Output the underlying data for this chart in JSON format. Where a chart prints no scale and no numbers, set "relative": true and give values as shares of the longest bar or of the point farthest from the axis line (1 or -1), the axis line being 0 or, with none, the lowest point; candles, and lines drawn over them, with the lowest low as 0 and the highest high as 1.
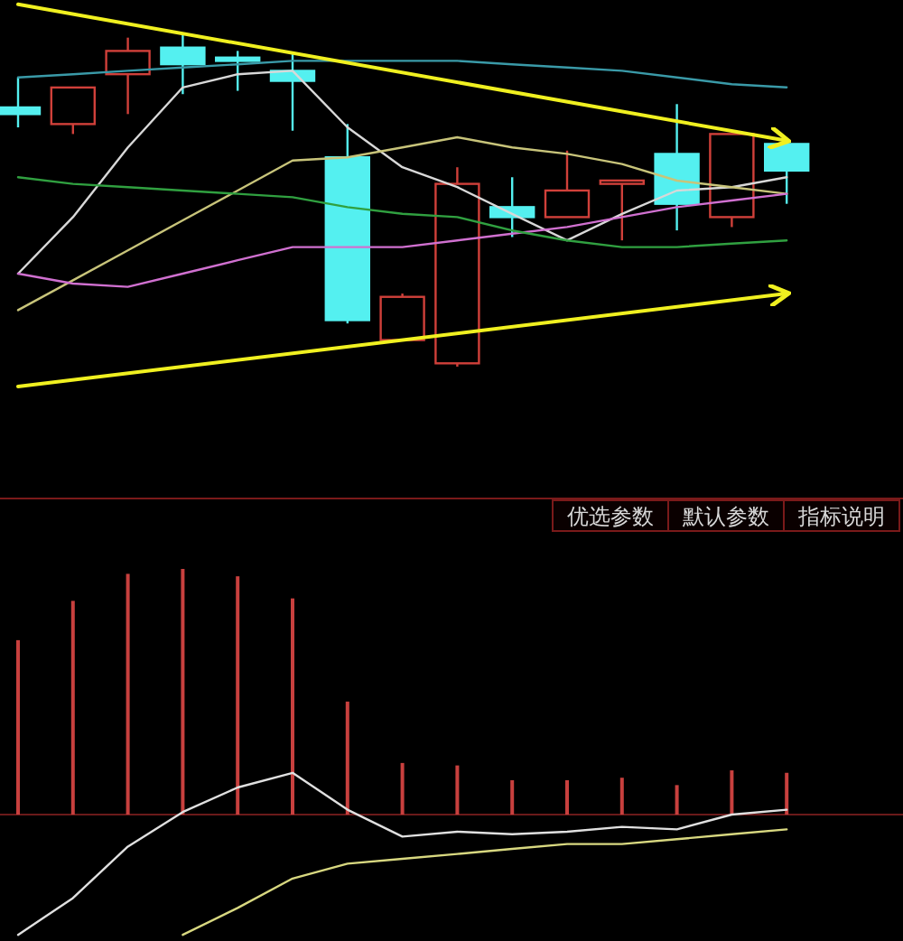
{
  "chart_data": [
    {
      "type": "candlestick",
      "relative": true,
      "categories": [
        null,
        null,
        null,
        null,
        null,
        null,
        null,
        null,
        null,
        null,
        null,
        null,
        null,
        null,
        null
      ],
      "ohlc": [
        [
          0.78,
          0.87,
          0.72,
          0.76
        ],
        [
          0.73,
          0.84,
          0.7,
          0.84
        ],
        [
          0.88,
          0.99,
          0.76,
          0.95
        ],
        [
          0.96,
          1.0,
          0.82,
          0.91
        ],
        [
          0.93,
          0.95,
          0.83,
          0.92
        ],
        [
          0.89,
          0.94,
          0.71,
          0.86
        ],
        [
          0.63,
          0.73,
          0.13,
          0.14
        ],
        [
          0.08,
          0.22,
          0.08,
          0.21
        ],
        [
          0.01,
          0.6,
          0.0,
          0.55
        ],
        [
          0.48,
          0.57,
          0.39,
          0.45
        ],
        [
          0.45,
          0.65,
          0.45,
          0.53
        ],
        [
          0.55,
          0.56,
          0.38,
          0.56
        ],
        [
          0.64,
          0.79,
          0.41,
          0.49
        ],
        [
          0.45,
          0.7,
          0.42,
          0.7
        ],
        [
          0.67,
          0.68,
          0.49,
          0.59
        ]
      ],
      "colors": [
        "#54f0f0",
        "#d0403a",
        "#d0403a",
        "#54f0f0",
        "#54f0f0",
        "#54f0f0",
        "#54f0f0",
        "#d0403a",
        "#d0403a",
        "#54f0f0",
        "#d0403a",
        "#d0403a",
        "#54f0f0",
        "#d0403a",
        "#54f0f0"
      ],
      "series": [
        {
          "type": "line",
          "color": "#d8d8d8",
          "values": [
            0.28,
            0.45,
            0.66,
            0.84,
            0.88,
            0.89,
            0.72,
            0.6,
            0.54,
            0.46,
            0.38,
            0.46,
            0.53,
            0.54,
            0.57
          ]
        },
        {
          "type": "line",
          "color": "#c8c47a",
          "values": [
            0.17,
            0.26,
            0.35,
            0.44,
            0.53,
            0.62,
            0.63,
            0.66,
            0.69,
            0.66,
            0.64,
            0.61,
            0.56,
            0.54,
            0.52
          ]
        },
        {
          "type": "line",
          "color": "#d070d0",
          "values": [
            0.28,
            0.25,
            0.24,
            0.28,
            0.32,
            0.36,
            0.36,
            0.36,
            0.38,
            0.4,
            0.42,
            0.45,
            0.48,
            0.5,
            0.52
          ]
        },
        {
          "type": "line",
          "color": "#30a040",
          "values": [
            0.57,
            0.55,
            0.54,
            0.53,
            0.52,
            0.51,
            0.48,
            0.46,
            0.45,
            0.41,
            0.38,
            0.36,
            0.36,
            0.37,
            0.38
          ]
        },
        {
          "type": "line",
          "color": "#3a9aa8",
          "values": [
            0.87,
            0.88,
            0.89,
            0.9,
            0.91,
            0.92,
            0.92,
            0.92,
            0.92,
            0.91,
            0.9,
            0.89,
            0.87,
            0.85,
            0.84
          ]
        },
        {
          "type": "line",
          "color": "#f0f020",
          "values": [
            1.09,
            null,
            null,
            null,
            null,
            null,
            null,
            null,
            null,
            null,
            null,
            null,
            null,
            null,
            0.68
          ]
        },
        {
          "type": "line",
          "color": "#f0f020",
          "values": [
            -0.06,
            null,
            null,
            null,
            null,
            null,
            null,
            null,
            null,
            null,
            null,
            null,
            null,
            null,
            0.22
          ]
        }
      ]
    },
    {
      "type": "bar",
      "relative": true,
      "ref_lines": [
        {
          "axis": "y",
          "value": 0,
          "color": "#6a1a1a"
        }
      ],
      "categories": [
        null,
        null,
        null,
        null,
        null,
        null,
        null,
        null,
        null,
        null,
        null,
        null,
        null,
        null,
        null
      ],
      "annotations": [
        "优选参数",
        "默认参数",
        "指标说明"
      ],
      "series": [
        {
          "type": "bar",
          "color": "#c8403e",
          "values": [
            0.71,
            0.87,
            0.98,
            1.0,
            0.97,
            0.88,
            0.46,
            0.21,
            0.2,
            0.14,
            0.14,
            0.15,
            0.12,
            0.18,
            0.17
          ]
        },
        {
          "type": "line",
          "color": "#e0e0e0",
          "values": [
            -0.49,
            -0.34,
            -0.13,
            0.01,
            0.11,
            0.17,
            0.02,
            -0.09,
            -0.07,
            -0.08,
            -0.07,
            -0.05,
            -0.06,
            0.0,
            0.02
          ]
        },
        {
          "type": "line",
          "color": "#d8d880",
          "values": [
            null,
            null,
            null,
            -0.49,
            -0.38,
            -0.26,
            -0.2,
            -0.18,
            -0.16,
            -0.14,
            -0.12,
            -0.12,
            -0.1,
            -0.08,
            -0.06
          ]
        }
      ]
    }
  ]
}
